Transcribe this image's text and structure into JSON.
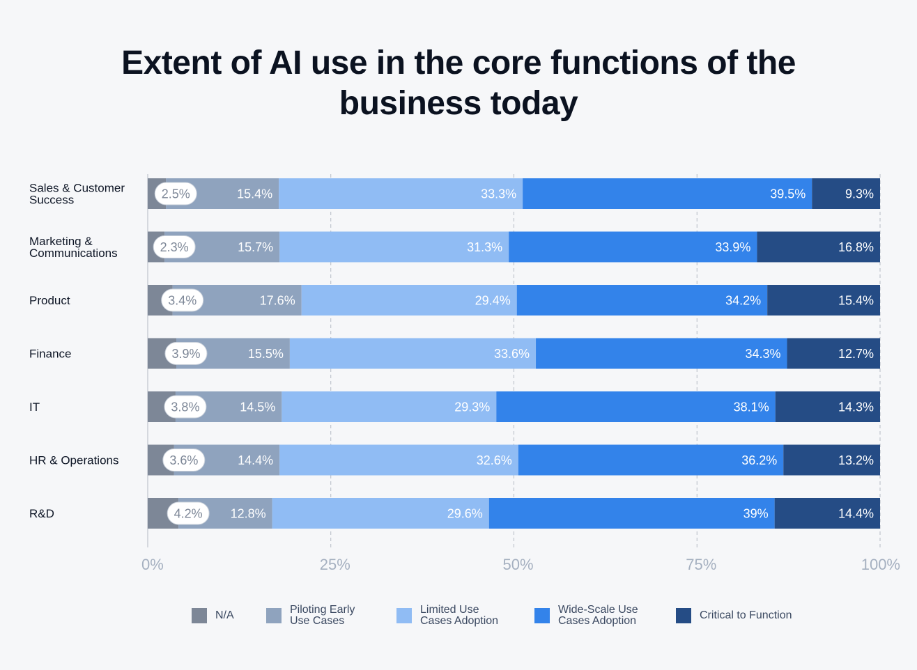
{
  "chart_data": {
    "type": "bar",
    "orientation": "horizontal",
    "stacked": true,
    "title": "Extent of AI use in the core functions of the business today",
    "categories": [
      "Sales & Customer Success",
      "Marketing & Communications",
      "Product",
      "Finance",
      "IT",
      "HR & Operations",
      "R&D"
    ],
    "series": [
      {
        "name": "N/A",
        "color": "#7d8797",
        "values": [
          2.5,
          2.3,
          3.4,
          3.9,
          3.8,
          3.6,
          4.2
        ]
      },
      {
        "name": "Piloting Early Use Cases",
        "color": "#8fa3be",
        "values": [
          15.4,
          15.7,
          17.6,
          15.5,
          14.5,
          14.4,
          12.8
        ]
      },
      {
        "name": "Limited Use Cases Adoption",
        "color": "#90bcf4",
        "values": [
          33.3,
          31.3,
          29.4,
          33.6,
          29.3,
          32.6,
          29.6
        ]
      },
      {
        "name": "Wide-Scale Use Cases Adoption",
        "color": "#3383ea",
        "values": [
          39.5,
          33.9,
          34.2,
          34.3,
          38.1,
          36.2,
          39
        ]
      },
      {
        "name": "Critical to Function",
        "color": "#254c85",
        "values": [
          9.3,
          16.8,
          15.4,
          12.7,
          14.3,
          13.2,
          14.4
        ]
      }
    ],
    "data_labels": [
      [
        "2.5%",
        "15.4%",
        "33.3%",
        "39.5%",
        "9.3%"
      ],
      [
        "2.3%",
        "15.7%",
        "31.3%",
        "33.9%",
        "16.8%"
      ],
      [
        "3.4%",
        "17.6%",
        "29.4%",
        "34.2%",
        "15.4%"
      ],
      [
        "3.9%",
        "15.5%",
        "33.6%",
        "34.3%",
        "12.7%"
      ],
      [
        "3.8%",
        "14.5%",
        "29.3%",
        "38.1%",
        "14.3%"
      ],
      [
        "3.6%",
        "14.4%",
        "32.6%",
        "36.2%",
        "13.2%"
      ],
      [
        "4.2%",
        "12.8%",
        "29.6%",
        "39%",
        "14.4%"
      ]
    ],
    "category_label_lines": [
      [
        "Sales & Customer",
        "Success"
      ],
      [
        "Marketing &",
        "Communications"
      ],
      [
        "Product"
      ],
      [
        "Finance"
      ],
      [
        "IT"
      ],
      [
        "HR & Operations"
      ],
      [
        "R&D"
      ]
    ],
    "xlim": [
      0,
      100
    ],
    "x_ticks": [
      0,
      25,
      50,
      75,
      100
    ],
    "x_tick_labels": [
      "0%",
      "25%",
      "50%",
      "75%",
      "100%"
    ],
    "grid": "vertical dashed",
    "legend_position": "bottom",
    "legend_labels": [
      [
        "N/A"
      ],
      [
        "Piloting Early",
        "Use Cases"
      ],
      [
        "Limited Use",
        "Cases Adoption"
      ],
      [
        "Wide-Scale Use",
        "Cases Adoption"
      ],
      [
        "Critical to Function"
      ]
    ],
    "colors": {
      "background": "#f6f7f9",
      "grid": "#b4bac4",
      "tick_label": "#a5b0c0",
      "category_label": "#0c1424",
      "pill_background": "#ffffff",
      "pill_text": "#7d8797",
      "bar_label": "#ffffff"
    }
  }
}
